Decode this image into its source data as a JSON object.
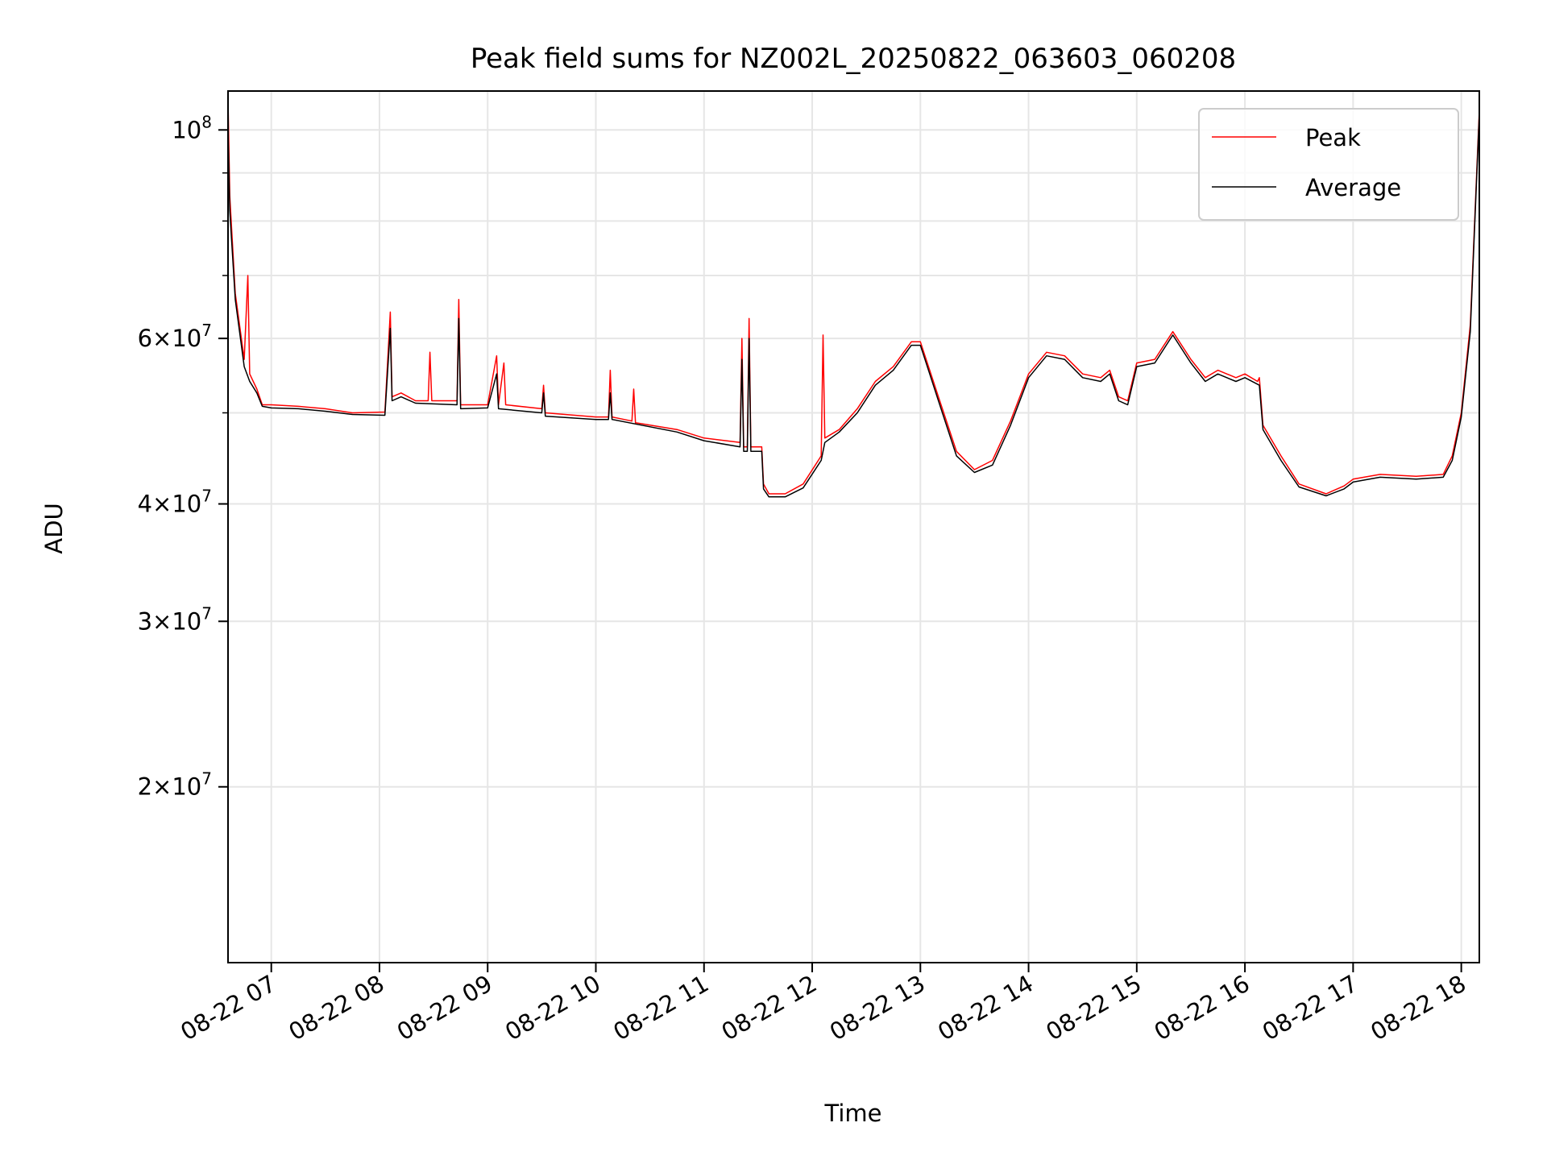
{
  "chart_data": {
    "type": "line",
    "title": "Peak field sums for NZ002L_20250822_063603_060208",
    "xlabel": "Time",
    "ylabel": "ADU",
    "y_scale": "log",
    "ylim": [
      13000000,
      110000000
    ],
    "xlim": [
      "2025-08-22 06:36",
      "2025-08-22 18:10"
    ],
    "grid": true,
    "legend_position": "top-right",
    "x_ticks": [
      {
        "t": "2025-08-22 07:00",
        "label": "08-22 07"
      },
      {
        "t": "2025-08-22 08:00",
        "label": "08-22 08"
      },
      {
        "t": "2025-08-22 09:00",
        "label": "08-22 09"
      },
      {
        "t": "2025-08-22 10:00",
        "label": "08-22 10"
      },
      {
        "t": "2025-08-22 11:00",
        "label": "08-22 11"
      },
      {
        "t": "2025-08-22 12:00",
        "label": "08-22 12"
      },
      {
        "t": "2025-08-22 13:00",
        "label": "08-22 13"
      },
      {
        "t": "2025-08-22 14:00",
        "label": "08-22 14"
      },
      {
        "t": "2025-08-22 15:00",
        "label": "08-22 15"
      },
      {
        "t": "2025-08-22 16:00",
        "label": "08-22 16"
      },
      {
        "t": "2025-08-22 17:00",
        "label": "08-22 17"
      },
      {
        "t": "2025-08-22 18:00",
        "label": "08-22 18"
      }
    ],
    "y_ticks_major": [
      {
        "v": 100000000,
        "mant": "",
        "base": "10",
        "exp": "8"
      },
      {
        "v": 60000000,
        "mant": "6",
        "base": "10",
        "exp": "7"
      },
      {
        "v": 40000000,
        "mant": "4",
        "base": "10",
        "exp": "7"
      },
      {
        "v": 30000000,
        "mant": "3",
        "base": "10",
        "exp": "7"
      },
      {
        "v": 20000000,
        "mant": "2",
        "base": "10",
        "exp": "7"
      }
    ],
    "y_ticks_minor": [
      90000000,
      80000000,
      70000000,
      50000000
    ],
    "series": [
      {
        "name": "Peak",
        "color": "#ff0000",
        "points": [
          [
            "2025-08-22 06:36",
            108000000
          ],
          [
            "2025-08-22 06:37",
            85000000
          ],
          [
            "2025-08-22 06:40",
            67000000
          ],
          [
            "2025-08-22 06:45",
            57000000
          ],
          [
            "2025-08-22 06:47",
            70000000
          ],
          [
            "2025-08-22 06:48",
            55000000
          ],
          [
            "2025-08-22 06:52",
            53000000
          ],
          [
            "2025-08-22 06:55",
            51000000
          ],
          [
            "2025-08-22 07:00",
            51000000
          ],
          [
            "2025-08-22 07:15",
            50800000
          ],
          [
            "2025-08-22 07:30",
            50500000
          ],
          [
            "2025-08-22 07:45",
            50000000
          ],
          [
            "2025-08-22 08:03",
            50100000
          ],
          [
            "2025-08-22 08:06",
            64000000
          ],
          [
            "2025-08-22 08:07",
            52000000
          ],
          [
            "2025-08-22 08:12",
            52500000
          ],
          [
            "2025-08-22 08:20",
            51500000
          ],
          [
            "2025-08-22 08:27",
            51500000
          ],
          [
            "2025-08-22 08:28",
            58000000
          ],
          [
            "2025-08-22 08:29",
            51500000
          ],
          [
            "2025-08-22 08:43",
            51500000
          ],
          [
            "2025-08-22 08:44",
            66000000
          ],
          [
            "2025-08-22 08:45",
            51000000
          ],
          [
            "2025-08-22 09:00",
            51000000
          ],
          [
            "2025-08-22 09:05",
            57500000
          ],
          [
            "2025-08-22 09:06",
            51000000
          ],
          [
            "2025-08-22 09:09",
            56500000
          ],
          [
            "2025-08-22 09:10",
            51000000
          ],
          [
            "2025-08-22 09:30",
            50500000
          ],
          [
            "2025-08-22 09:31",
            53500000
          ],
          [
            "2025-08-22 09:32",
            50000000
          ],
          [
            "2025-08-22 10:00",
            49500000
          ],
          [
            "2025-08-22 10:07",
            49500000
          ],
          [
            "2025-08-22 10:08",
            55500000
          ],
          [
            "2025-08-22 10:09",
            49500000
          ],
          [
            "2025-08-22 10:20",
            49000000
          ],
          [
            "2025-08-22 10:21",
            53000000
          ],
          [
            "2025-08-22 10:22",
            48800000
          ],
          [
            "2025-08-22 10:45",
            48000000
          ],
          [
            "2025-08-22 11:00",
            47000000
          ],
          [
            "2025-08-22 11:20",
            46500000
          ],
          [
            "2025-08-22 11:21",
            60000000
          ],
          [
            "2025-08-22 11:22",
            46000000
          ],
          [
            "2025-08-22 11:24",
            46000000
          ],
          [
            "2025-08-22 11:25",
            63000000
          ],
          [
            "2025-08-22 11:26",
            46000000
          ],
          [
            "2025-08-22 11:32",
            46000000
          ],
          [
            "2025-08-22 11:33",
            42000000
          ],
          [
            "2025-08-22 11:36",
            41000000
          ],
          [
            "2025-08-22 11:45",
            41000000
          ],
          [
            "2025-08-22 11:55",
            42000000
          ],
          [
            "2025-08-22 12:05",
            45000000
          ],
          [
            "2025-08-22 12:06",
            60500000
          ],
          [
            "2025-08-22 12:07",
            47000000
          ],
          [
            "2025-08-22 12:15",
            48000000
          ],
          [
            "2025-08-22 12:25",
            50500000
          ],
          [
            "2025-08-22 12:35",
            54000000
          ],
          [
            "2025-08-22 12:45",
            56000000
          ],
          [
            "2025-08-22 12:55",
            59500000
          ],
          [
            "2025-08-22 13:00",
            59500000
          ],
          [
            "2025-08-22 13:10",
            52000000
          ],
          [
            "2025-08-22 13:20",
            45500000
          ],
          [
            "2025-08-22 13:30",
            43500000
          ],
          [
            "2025-08-22 13:40",
            44500000
          ],
          [
            "2025-08-22 13:50",
            49000000
          ],
          [
            "2025-08-22 14:00",
            55000000
          ],
          [
            "2025-08-22 14:10",
            58000000
          ],
          [
            "2025-08-22 14:20",
            57500000
          ],
          [
            "2025-08-22 14:30",
            55000000
          ],
          [
            "2025-08-22 14:40",
            54500000
          ],
          [
            "2025-08-22 14:45",
            55500000
          ],
          [
            "2025-08-22 14:50",
            52000000
          ],
          [
            "2025-08-22 14:55",
            51500000
          ],
          [
            "2025-08-22 15:00",
            56500000
          ],
          [
            "2025-08-22 15:10",
            57000000
          ],
          [
            "2025-08-22 15:20",
            61000000
          ],
          [
            "2025-08-22 15:30",
            57000000
          ],
          [
            "2025-08-22 15:38",
            54500000
          ],
          [
            "2025-08-22 15:45",
            55500000
          ],
          [
            "2025-08-22 15:55",
            54500000
          ],
          [
            "2025-08-22 16:00",
            55000000
          ],
          [
            "2025-08-22 16:07",
            54000000
          ],
          [
            "2025-08-22 16:08",
            54500000
          ],
          [
            "2025-08-22 16:10",
            48500000
          ],
          [
            "2025-08-22 16:20",
            45000000
          ],
          [
            "2025-08-22 16:30",
            42000000
          ],
          [
            "2025-08-22 16:45",
            41000000
          ],
          [
            "2025-08-22 16:55",
            41800000
          ],
          [
            "2025-08-22 17:00",
            42500000
          ],
          [
            "2025-08-22 17:15",
            43000000
          ],
          [
            "2025-08-22 17:35",
            42800000
          ],
          [
            "2025-08-22 17:50",
            43000000
          ],
          [
            "2025-08-22 17:55",
            45000000
          ],
          [
            "2025-08-22 18:00",
            50000000
          ],
          [
            "2025-08-22 18:05",
            62000000
          ],
          [
            "2025-08-22 18:10",
            105000000
          ]
        ]
      },
      {
        "name": "Average",
        "color": "#000000",
        "points": [
          [
            "2025-08-22 06:36",
            100000000
          ],
          [
            "2025-08-22 06:37",
            82000000
          ],
          [
            "2025-08-22 06:40",
            66000000
          ],
          [
            "2025-08-22 06:45",
            56000000
          ],
          [
            "2025-08-22 06:48",
            54000000
          ],
          [
            "2025-08-22 06:52",
            52500000
          ],
          [
            "2025-08-22 06:55",
            50800000
          ],
          [
            "2025-08-22 07:00",
            50600000
          ],
          [
            "2025-08-22 07:15",
            50500000
          ],
          [
            "2025-08-22 07:30",
            50200000
          ],
          [
            "2025-08-22 07:45",
            49800000
          ],
          [
            "2025-08-22 08:03",
            49700000
          ],
          [
            "2025-08-22 08:06",
            61500000
          ],
          [
            "2025-08-22 08:07",
            51500000
          ],
          [
            "2025-08-22 08:12",
            52000000
          ],
          [
            "2025-08-22 08:20",
            51200000
          ],
          [
            "2025-08-22 08:43",
            51000000
          ],
          [
            "2025-08-22 08:44",
            63000000
          ],
          [
            "2025-08-22 08:45",
            50500000
          ],
          [
            "2025-08-22 09:00",
            50600000
          ],
          [
            "2025-08-22 09:05",
            55000000
          ],
          [
            "2025-08-22 09:06",
            50500000
          ],
          [
            "2025-08-22 09:30",
            50000000
          ],
          [
            "2025-08-22 09:31",
            52500000
          ],
          [
            "2025-08-22 09:32",
            49600000
          ],
          [
            "2025-08-22 10:00",
            49200000
          ],
          [
            "2025-08-22 10:07",
            49200000
          ],
          [
            "2025-08-22 10:08",
            52500000
          ],
          [
            "2025-08-22 10:09",
            49200000
          ],
          [
            "2025-08-22 10:45",
            47700000
          ],
          [
            "2025-08-22 11:00",
            46700000
          ],
          [
            "2025-08-22 11:20",
            46000000
          ],
          [
            "2025-08-22 11:21",
            57000000
          ],
          [
            "2025-08-22 11:22",
            45500000
          ],
          [
            "2025-08-22 11:24",
            45500000
          ],
          [
            "2025-08-22 11:25",
            60000000
          ],
          [
            "2025-08-22 11:26",
            45500000
          ],
          [
            "2025-08-22 11:32",
            45500000
          ],
          [
            "2025-08-22 11:33",
            41500000
          ],
          [
            "2025-08-22 11:36",
            40700000
          ],
          [
            "2025-08-22 11:45",
            40700000
          ],
          [
            "2025-08-22 11:55",
            41600000
          ],
          [
            "2025-08-22 12:05",
            44500000
          ],
          [
            "2025-08-22 12:07",
            46500000
          ],
          [
            "2025-08-22 12:15",
            47700000
          ],
          [
            "2025-08-22 12:25",
            50000000
          ],
          [
            "2025-08-22 12:35",
            53500000
          ],
          [
            "2025-08-22 12:45",
            55500000
          ],
          [
            "2025-08-22 12:55",
            59000000
          ],
          [
            "2025-08-22 13:00",
            59000000
          ],
          [
            "2025-08-22 13:10",
            51500000
          ],
          [
            "2025-08-22 13:20",
            45000000
          ],
          [
            "2025-08-22 13:30",
            43200000
          ],
          [
            "2025-08-22 13:40",
            44000000
          ],
          [
            "2025-08-22 13:50",
            48500000
          ],
          [
            "2025-08-22 14:00",
            54500000
          ],
          [
            "2025-08-22 14:10",
            57500000
          ],
          [
            "2025-08-22 14:20",
            57000000
          ],
          [
            "2025-08-22 14:30",
            54500000
          ],
          [
            "2025-08-22 14:40",
            54000000
          ],
          [
            "2025-08-22 14:45",
            55000000
          ],
          [
            "2025-08-22 14:50",
            51500000
          ],
          [
            "2025-08-22 14:55",
            51000000
          ],
          [
            "2025-08-22 15:00",
            56000000
          ],
          [
            "2025-08-22 15:10",
            56500000
          ],
          [
            "2025-08-22 15:20",
            60500000
          ],
          [
            "2025-08-22 15:30",
            56500000
          ],
          [
            "2025-08-22 15:38",
            54000000
          ],
          [
            "2025-08-22 15:45",
            55000000
          ],
          [
            "2025-08-22 15:55",
            54000000
          ],
          [
            "2025-08-22 16:00",
            54500000
          ],
          [
            "2025-08-22 16:08",
            53500000
          ],
          [
            "2025-08-22 16:10",
            48000000
          ],
          [
            "2025-08-22 16:20",
            44500000
          ],
          [
            "2025-08-22 16:30",
            41700000
          ],
          [
            "2025-08-22 16:45",
            40800000
          ],
          [
            "2025-08-22 16:55",
            41500000
          ],
          [
            "2025-08-22 17:00",
            42200000
          ],
          [
            "2025-08-22 17:15",
            42700000
          ],
          [
            "2025-08-22 17:35",
            42500000
          ],
          [
            "2025-08-22 17:50",
            42700000
          ],
          [
            "2025-08-22 17:55",
            44500000
          ],
          [
            "2025-08-22 18:00",
            49500000
          ],
          [
            "2025-08-22 18:05",
            61000000
          ],
          [
            "2025-08-22 18:10",
            104000000
          ]
        ]
      }
    ]
  }
}
